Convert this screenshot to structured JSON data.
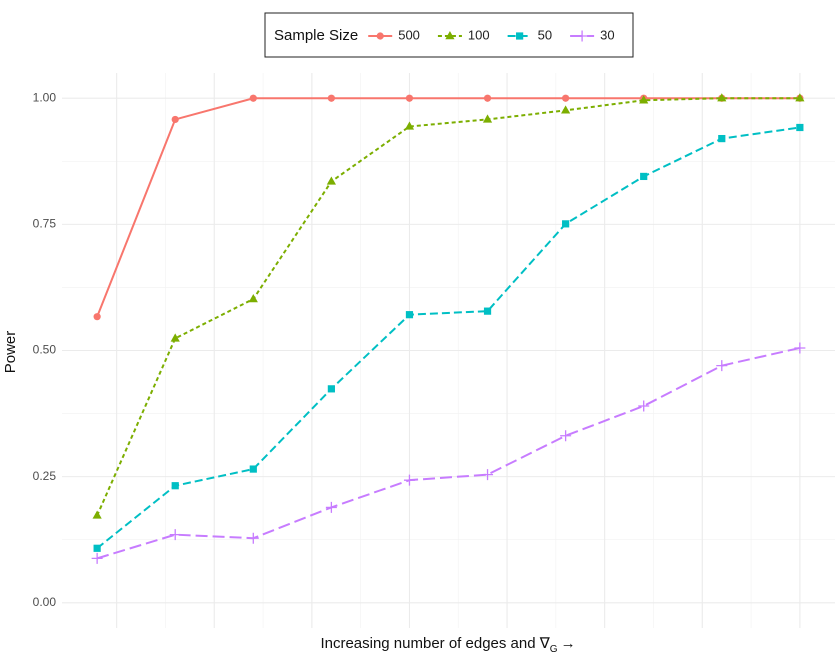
{
  "chart_data": {
    "type": "line",
    "ylabel": "Power",
    "xlabel": [
      "Increasing number of edges and ∇",
      "G",
      "→"
    ],
    "legend_title": "Sample Size",
    "legend_position": "top",
    "x": [
      1,
      2,
      3,
      4,
      5,
      6,
      7,
      8,
      9,
      10
    ],
    "xlim": [
      0.55,
      10.45
    ],
    "xticks": [
      1.25,
      2.5,
      3.75,
      5,
      6.25,
      7.5,
      8.75,
      10
    ],
    "ylim": [
      -0.05,
      1.05
    ],
    "yticks": [
      {
        "value": 0,
        "label": "0.00"
      },
      {
        "value": 0.25,
        "label": "0.25"
      },
      {
        "value": 0.5,
        "label": "0.50"
      },
      {
        "value": 0.75,
        "label": "0.75"
      },
      {
        "value": 1,
        "label": "1.00"
      }
    ],
    "grid": true,
    "series": [
      {
        "name": "500",
        "color": "#F8766D",
        "linestyle": "solid",
        "marker": "circle",
        "values": [
          0.567,
          0.958,
          1,
          1,
          1,
          1,
          1,
          1,
          1,
          1
        ]
      },
      {
        "name": "100",
        "color": "#7CAE00",
        "linestyle": "dotted",
        "marker": "triangle",
        "values": [
          0.173,
          0.524,
          0.602,
          0.835,
          0.944,
          0.958,
          0.976,
          0.996,
          1,
          1
        ]
      },
      {
        "name": "50",
        "color": "#00BFC4",
        "linestyle": "dashed",
        "marker": "square",
        "values": [
          0.108,
          0.232,
          0.265,
          0.424,
          0.571,
          0.578,
          0.751,
          0.845,
          0.92,
          0.942
        ]
      },
      {
        "name": "30",
        "color": "#C77CFF",
        "linestyle": "longdash",
        "marker": "plus",
        "values": [
          0.088,
          0.135,
          0.128,
          0.189,
          0.243,
          0.254,
          0.331,
          0.39,
          0.47,
          0.505
        ]
      }
    ]
  }
}
